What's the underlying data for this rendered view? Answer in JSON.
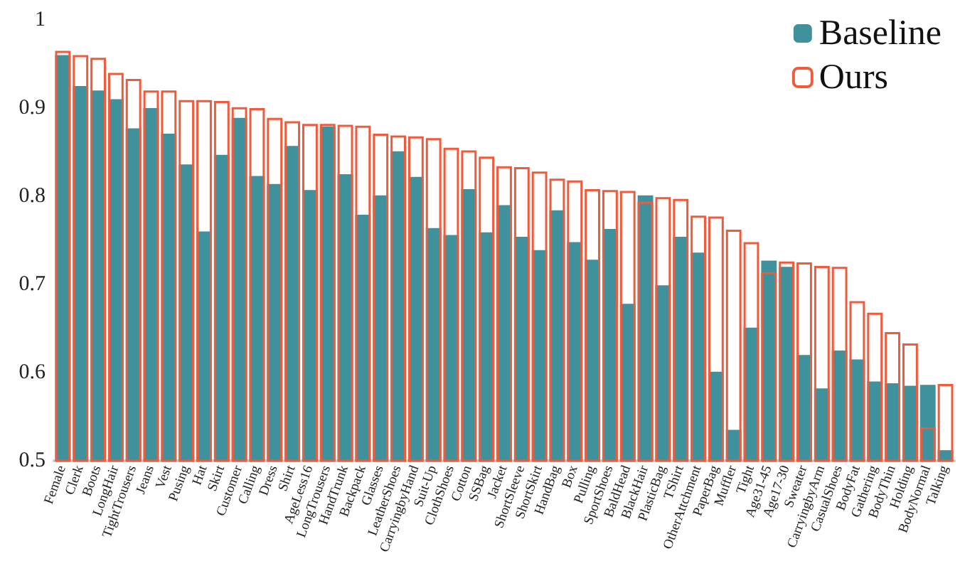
{
  "chart_data": {
    "type": "bar",
    "categories": [
      "Female",
      "Clerk",
      "Boots",
      "LongHair",
      "TightTrousers",
      "Jeans",
      "Vest",
      "Pusing",
      "Hat",
      "Skirt",
      "Customer",
      "Calling",
      "Dress",
      "Shirt",
      "AgeLess16",
      "LongTrousers",
      "HandTrunk",
      "Backpack",
      "Glasses",
      "LeatherShoes",
      "CarryingbyHand",
      "Suit-Up",
      "ClothShoes",
      "Cotton",
      "SSBag",
      "Jacket",
      "ShortSleeve",
      "ShortSkirt",
      "HandBag",
      "Box",
      "Pulling",
      "SportShoes",
      "BaldHead",
      "BlackHair",
      "PlasticBag",
      "TShirt",
      "OtherAttchment",
      "PaperBag",
      "Muffler",
      "Tight",
      "Age31-45",
      "Age17-30",
      "Sweater",
      "CarryingbyArm",
      "CasualShoes",
      "BodyFat",
      "Gathering",
      "BodyThin",
      "Holding",
      "BodyNormal",
      "Talking"
    ],
    "series": [
      {
        "name": "Baseline",
        "color": "#3f929c",
        "values": [
          0.96,
          0.925,
          0.92,
          0.91,
          0.877,
          0.9,
          0.871,
          0.836,
          0.76,
          0.847,
          0.889,
          0.823,
          0.814,
          0.857,
          0.807,
          0.879,
          0.825,
          0.779,
          0.801,
          0.851,
          0.822,
          0.764,
          0.756,
          0.808,
          0.759,
          0.79,
          0.754,
          0.739,
          0.784,
          0.748,
          0.728,
          0.763,
          0.678,
          0.801,
          0.699,
          0.754,
          0.736,
          0.601,
          0.535,
          0.651,
          0.727,
          0.72,
          0.62,
          0.582,
          0.625,
          0.615,
          0.59,
          0.588,
          0.585,
          0.586,
          0.512
        ]
      },
      {
        "name": "Ours",
        "color": "#f15a3a",
        "values": [
          0.965,
          0.96,
          0.957,
          0.94,
          0.933,
          0.92,
          0.92,
          0.909,
          0.909,
          0.908,
          0.901,
          0.9,
          0.889,
          0.885,
          0.882,
          0.882,
          0.881,
          0.88,
          0.871,
          0.869,
          0.868,
          0.866,
          0.855,
          0.852,
          0.845,
          0.834,
          0.833,
          0.828,
          0.82,
          0.818,
          0.808,
          0.807,
          0.806,
          0.794,
          0.799,
          0.797,
          0.778,
          0.777,
          0.762,
          0.748,
          0.714,
          0.726,
          0.725,
          0.721,
          0.72,
          0.681,
          0.668,
          0.646,
          0.633,
          0.538,
          0.587
        ]
      }
    ],
    "ylim": [
      0.5,
      1
    ],
    "yticks": [
      0.5,
      0.6,
      0.7,
      0.8,
      0.9,
      1
    ],
    "grid": false,
    "legend": "top right"
  }
}
